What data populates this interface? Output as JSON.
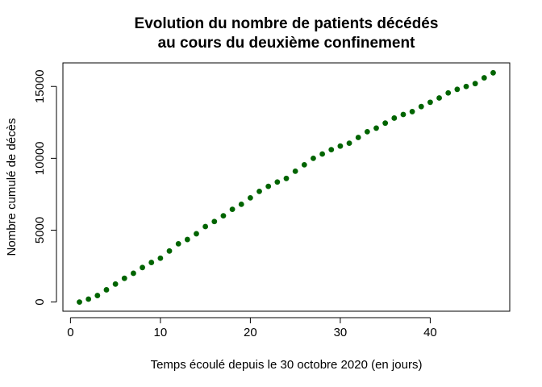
{
  "chart_data": {
    "type": "scatter",
    "title_lines": [
      "Evolution du nombre de patients décédés",
      "au cours du deuxième confinement"
    ],
    "xlabel": "Temps écoulé depuis le 30 octobre 2020 (en jours)",
    "ylabel": "Nombre cumulé de décès",
    "xlim": [
      -0.84,
      48.84
    ],
    "ylim": [
      -640,
      16640
    ],
    "xticks": [
      0,
      10,
      20,
      30,
      40
    ],
    "yticks": [
      0,
      5000,
      10000,
      15000
    ],
    "grid": false,
    "legend": "none",
    "point_color": "#006400",
    "x": [
      1,
      2,
      3,
      4,
      5,
      6,
      7,
      8,
      9,
      10,
      11,
      12,
      13,
      14,
      15,
      16,
      17,
      18,
      19,
      20,
      21,
      22,
      23,
      24,
      25,
      26,
      27,
      28,
      29,
      30,
      31,
      32,
      33,
      34,
      35,
      36,
      37,
      38,
      39,
      40,
      41,
      42,
      43,
      44,
      45,
      46,
      47
    ],
    "y": [
      0,
      200,
      450,
      850,
      1250,
      1650,
      2000,
      2400,
      2750,
      3050,
      3550,
      4050,
      4350,
      4750,
      5250,
      5600,
      6000,
      6450,
      6800,
      7250,
      7700,
      8050,
      8350,
      8600,
      9100,
      9550,
      10000,
      10300,
      10600,
      10850,
      11050,
      11450,
      11850,
      12100,
      12450,
      12800,
      13050,
      13250,
      13600,
      13900,
      14200,
      14550,
      14800,
      15000,
      15200,
      15600,
      15950
    ]
  }
}
